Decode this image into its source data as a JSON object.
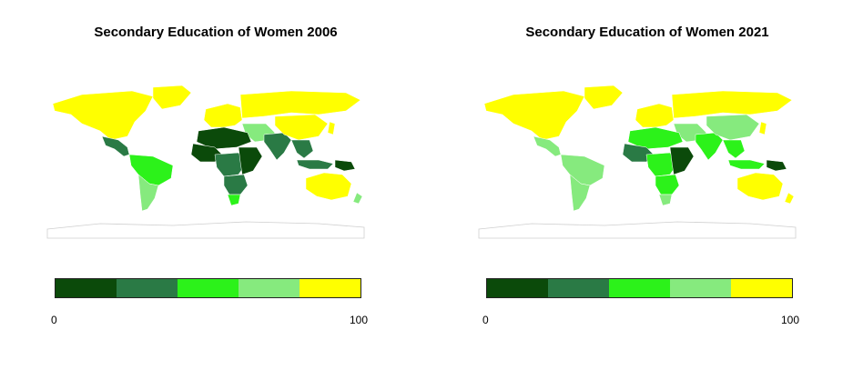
{
  "maps": [
    {
      "title": "Secondary Education of Women 2006",
      "legend": {
        "min": "0",
        "max": "100"
      },
      "shading": {
        "north_america": 4,
        "greenland": 4,
        "central_america": 1,
        "south_america_north": 2,
        "south_america_south": 3,
        "europe": 4,
        "russia": 4,
        "middle_east": 3,
        "north_africa": 0,
        "west_africa": 0,
        "central_africa": 1,
        "east_africa": 0,
        "southern_africa": 1,
        "south_africa": 2,
        "south_asia": 1,
        "china": 4,
        "southeast_asia": 1,
        "indonesia": 1,
        "papua": 0,
        "australia": 4,
        "new_zealand": 3,
        "japan": 4
      }
    },
    {
      "title": "Secondary Education of Women 2021",
      "legend": {
        "min": "0",
        "max": "100"
      },
      "shading": {
        "north_america": 4,
        "greenland": 4,
        "central_america": 3,
        "south_america_north": 3,
        "south_america_south": 3,
        "europe": 4,
        "russia": 4,
        "middle_east": 3,
        "north_africa": 2,
        "west_africa": 1,
        "central_africa": 2,
        "east_africa": 0,
        "southern_africa": 2,
        "south_africa": 3,
        "south_asia": 2,
        "china": 3,
        "southeast_asia": 2,
        "indonesia": 2,
        "papua": 0,
        "australia": 4,
        "new_zealand": 4,
        "japan": 4
      }
    }
  ],
  "color_scale": [
    "#0b4a0a",
    "#2a7a45",
    "#2cf21a",
    "#86ea7e",
    "#ffff00"
  ]
}
